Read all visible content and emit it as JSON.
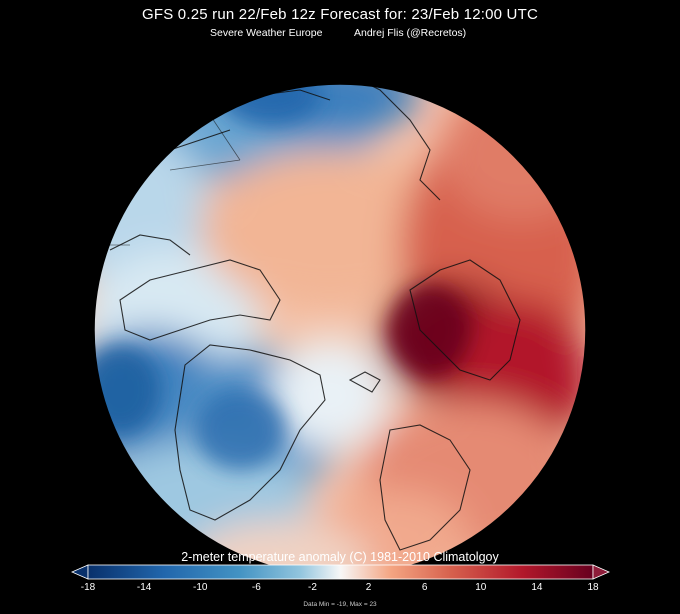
{
  "header": {
    "title": "GFS 0.25 run 22/Feb 12z   Forecast for: 23/Feb 12:00 UTC",
    "subtitle_left": "Severe Weather Europe",
    "subtitle_right": "Andrej Flis (@Recretos)"
  },
  "colorbar": {
    "title": "2-meter temperature anomaly (C)   1981-2010 Climatolgoy",
    "ticks": [
      "-18",
      "-14",
      "-10",
      "-6",
      "-2",
      "2",
      "6",
      "10",
      "14",
      "18"
    ],
    "min_max_text": "Data Min = -19, Max = 23"
  },
  "colors": {
    "cold_dark": "#08306b",
    "cold": "#2166ac",
    "cool": "#92c5de",
    "neutral": "#f7f7f7",
    "warm": "#f4a582",
    "hot": "#d6604d",
    "hot_dark": "#67001f"
  }
}
